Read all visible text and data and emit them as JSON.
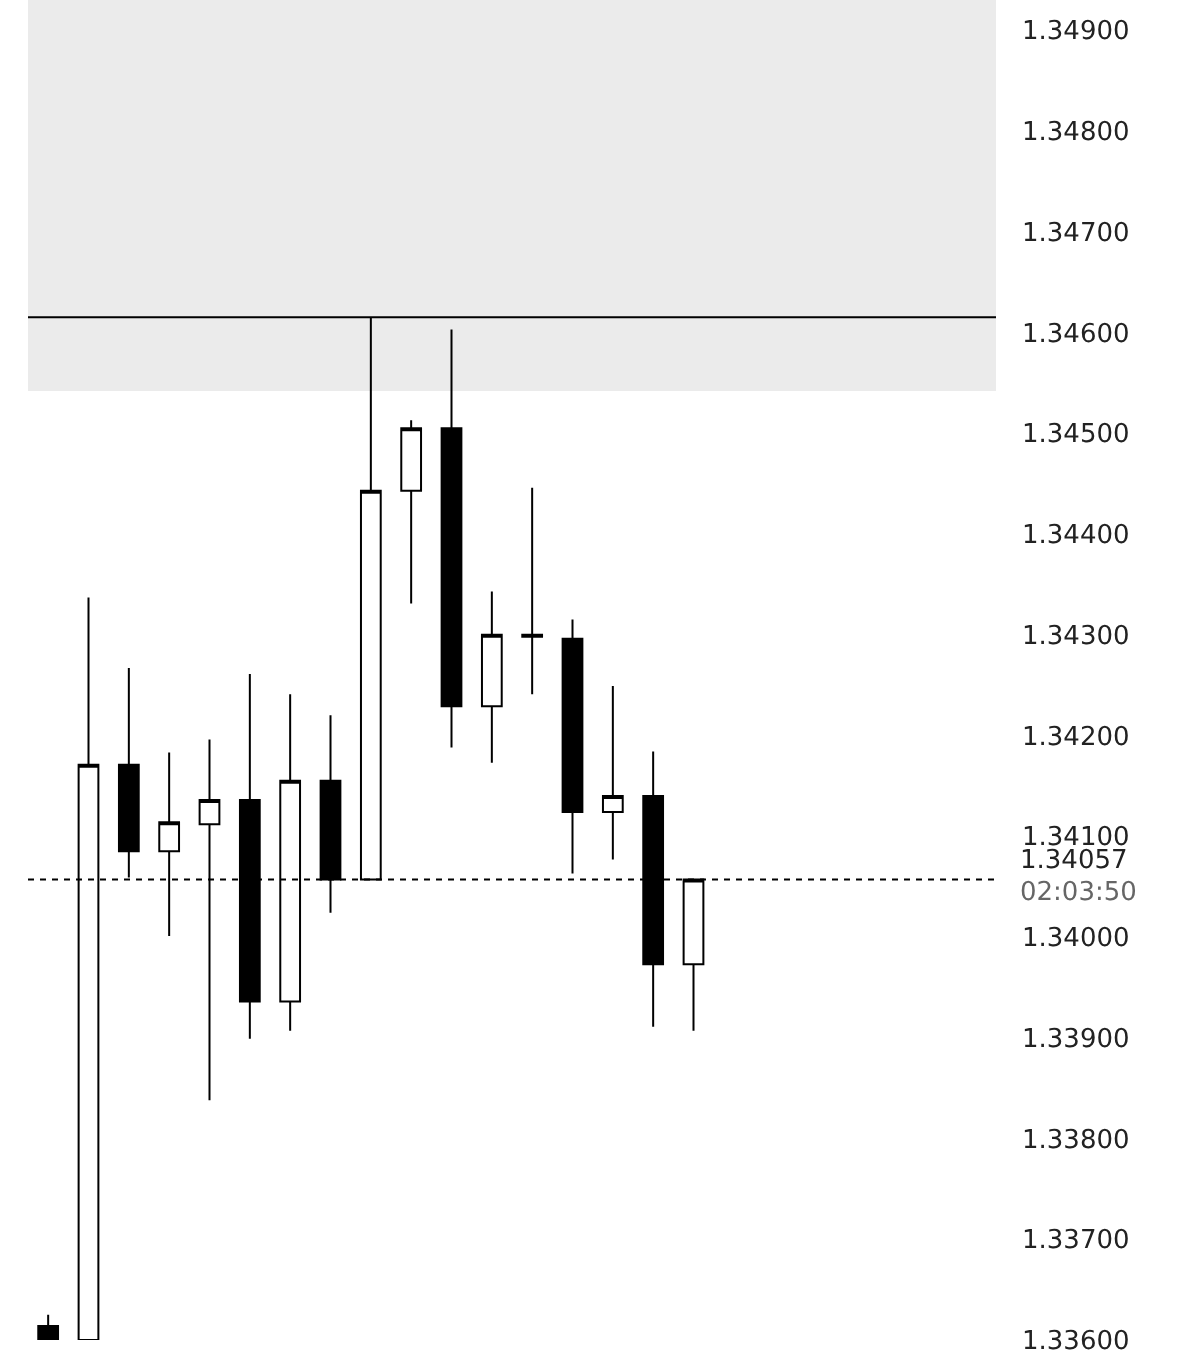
{
  "chart_data": {
    "type": "candlestick",
    "color": "#000000",
    "categories": [
      null,
      null,
      null,
      null,
      null,
      null,
      null,
      null,
      null,
      null,
      null,
      null,
      null,
      null,
      null,
      null,
      null,
      null,
      null,
      null,
      null,
      null,
      null,
      null
    ],
    "ohlc": [
      [
        1.33614,
        1.33625,
        1.336,
        1.336
      ],
      [
        1.336,
        1.34337,
        1.336,
        1.34171
      ],
      [
        1.34171,
        1.34267,
        1.34059,
        1.34085
      ],
      [
        1.34085,
        1.34183,
        1.34001,
        1.34114
      ],
      [
        1.34112,
        1.34196,
        1.33838,
        1.34136
      ],
      [
        1.34136,
        1.34261,
        1.33899,
        1.33936
      ],
      [
        1.33936,
        1.34241,
        1.33907,
        1.34155
      ],
      [
        1.34155,
        1.3422,
        1.34024,
        1.34057
      ],
      [
        1.34057,
        1.34615,
        1.34057,
        1.34443
      ],
      [
        1.34443,
        1.34513,
        1.34331,
        1.34505
      ],
      [
        1.34505,
        1.34603,
        1.34188,
        1.34229
      ],
      [
        1.34229,
        1.34343,
        1.34173,
        1.343
      ],
      [
        1.343,
        1.34446,
        1.34241,
        1.34298
      ],
      [
        1.34296,
        1.34315,
        1.34063,
        1.34124
      ],
      [
        1.34124,
        1.34249,
        1.34077,
        1.3414
      ],
      [
        1.3414,
        1.34184,
        1.33911,
        1.33973
      ],
      [
        1.33973,
        1.34057,
        1.33907,
        1.34057
      ],
      null,
      null,
      null,
      null,
      null,
      null,
      null
    ],
    "ylim": [
      1.336,
      1.3493
    ],
    "yticks": [
      {
        "value": 1.336,
        "label": "1.33600"
      },
      {
        "value": 1.337,
        "label": "1.33700"
      },
      {
        "value": 1.338,
        "label": "1.33800"
      },
      {
        "value": 1.339,
        "label": "1.33900"
      },
      {
        "value": 1.34,
        "label": "1.34000"
      },
      {
        "value": 1.341,
        "label": "1.34100"
      },
      {
        "value": 1.342,
        "label": "1.34200"
      },
      {
        "value": 1.343,
        "label": "1.34300"
      },
      {
        "value": 1.344,
        "label": "1.34400"
      },
      {
        "value": 1.345,
        "label": "1.34500"
      },
      {
        "value": 1.346,
        "label": "1.34600"
      },
      {
        "value": 1.347,
        "label": "1.34700"
      },
      {
        "value": 1.348,
        "label": "1.34800"
      },
      {
        "value": 1.349,
        "label": "1.34900"
      }
    ],
    "ref_lines": [
      {
        "axis": "y",
        "value": 1.34615,
        "line_style": "solid"
      },
      {
        "axis": "y",
        "value": 1.34057,
        "label": "1.34057",
        "line_style": "dotted"
      }
    ],
    "bands": [
      {
        "axis": "y",
        "from": 1.34542,
        "to": 1.3493,
        "color": "#ebebeb"
      }
    ],
    "annotations": [
      "02:03:50"
    ],
    "grid": false,
    "legend": false
  }
}
